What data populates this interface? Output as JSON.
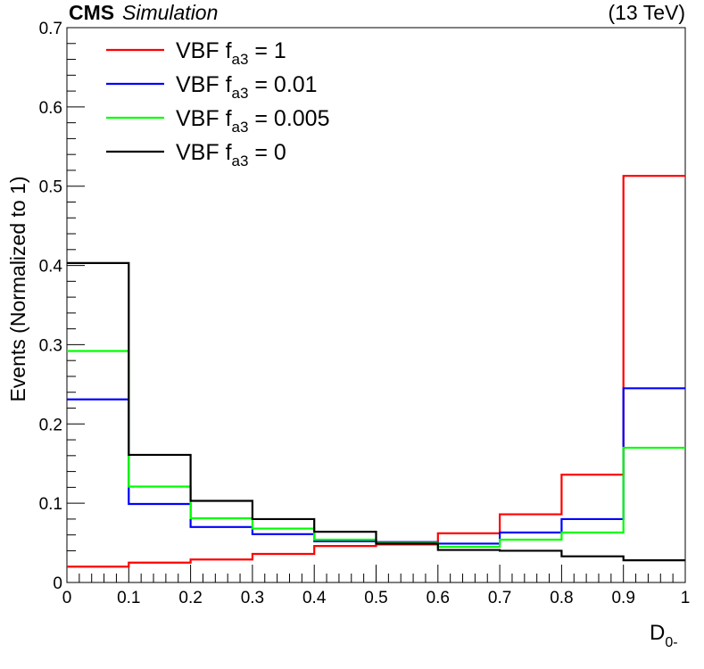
{
  "header": {
    "experiment": "CMS",
    "status": "Simulation",
    "energy": "(13 TeV)"
  },
  "chart_data": {
    "type": "histogram",
    "title": "",
    "xlabel": {
      "main": "D",
      "sub": "0-"
    },
    "ylabel": "Events (Normalized to 1)",
    "xlim": [
      0,
      1
    ],
    "ylim": [
      0,
      0.7
    ],
    "x_ticks": [
      "0",
      "0.1",
      "0.2",
      "0.3",
      "0.4",
      "0.5",
      "0.6",
      "0.7",
      "0.8",
      "0.9",
      "1"
    ],
    "y_ticks": [
      "0",
      "0.1",
      "0.2",
      "0.3",
      "0.4",
      "0.5",
      "0.6",
      "0.7"
    ],
    "bin_edges": [
      0,
      0.1,
      0.2,
      0.3,
      0.4,
      0.5,
      0.6,
      0.7,
      0.8,
      0.9,
      1.0
    ],
    "series": [
      {
        "name": "VBF fa3 = 1",
        "label_main": "VBF f",
        "label_sub": "a3",
        "label_rest": " = 1",
        "color": "#ff0000",
        "values": [
          0.02,
          0.025,
          0.029,
          0.036,
          0.046,
          0.048,
          0.062,
          0.086,
          0.136,
          0.513
        ]
      },
      {
        "name": "VBF fa3 = 0.01",
        "label_main": "VBF f",
        "label_sub": "a3",
        "label_rest": " = 0.01",
        "color": "#0000ff",
        "values": [
          0.231,
          0.099,
          0.07,
          0.061,
          0.052,
          0.051,
          0.049,
          0.063,
          0.08,
          0.245
        ]
      },
      {
        "name": "VBF fa3 = 0.005",
        "label_main": "VBF f",
        "label_sub": "a3",
        "label_rest": " = 0.005",
        "color": "#00ff00",
        "values": [
          0.292,
          0.121,
          0.081,
          0.068,
          0.054,
          0.05,
          0.045,
          0.054,
          0.063,
          0.17
        ]
      },
      {
        "name": "VBF fa3 = 0",
        "label_main": "VBF f",
        "label_sub": "a3",
        "label_rest": " = 0",
        "color": "#000000",
        "values": [
          0.403,
          0.161,
          0.103,
          0.08,
          0.064,
          0.049,
          0.041,
          0.04,
          0.033,
          0.028
        ]
      }
    ],
    "legend_position": "top-left"
  }
}
